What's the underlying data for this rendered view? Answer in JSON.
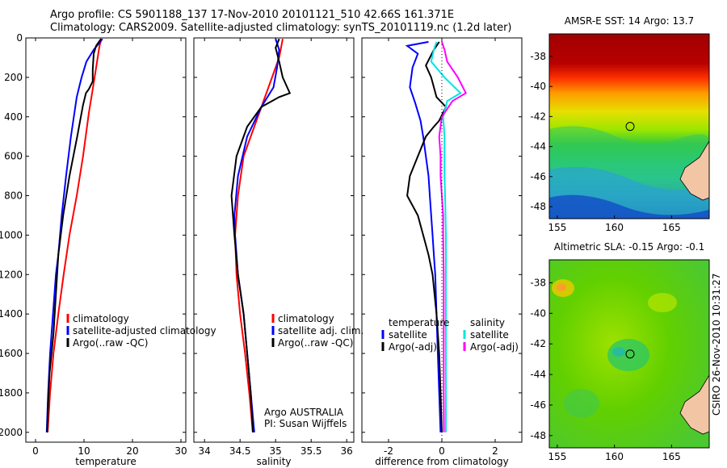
{
  "header": {
    "title_line1": "Argo profile: CS 5901188_137 17-Nov-2010 20101121_510 42.66S 161.371E",
    "title_line2": "Climatology: CARS2009. Satellite-adjusted climatology: synTS_20101119.nc (1.2d later)"
  },
  "side_stamp": "CSIRO 26-Nov-2010 10:31:27",
  "colors": {
    "climatology": "#ff0000",
    "satellite": "#0000ff",
    "argo": "#000000",
    "sat_salinity": "#00e5e5",
    "argo_salinity": "#ff00ff"
  },
  "chart_data": [
    {
      "type": "line",
      "id": "temperature",
      "xlabel": "temperature",
      "ylabel": "",
      "xlim": [
        -2,
        31
      ],
      "ylim": [
        2050,
        0
      ],
      "xticks": [
        0,
        10,
        20,
        30
      ],
      "yticks": [
        0,
        200,
        400,
        600,
        800,
        1000,
        1200,
        1400,
        1600,
        1800,
        2000
      ],
      "legend": [
        "climatology",
        "satellite-adjusted climatology",
        "Argo(..raw -QC)"
      ],
      "series": [
        {
          "name": "climatology",
          "color": "#ff0000",
          "points": [
            [
              13.6,
              5
            ],
            [
              13.2,
              40
            ],
            [
              12.5,
              150
            ],
            [
              11.8,
              260
            ],
            [
              11,
              380
            ],
            [
              9.8,
              600
            ],
            [
              8.5,
              800
            ],
            [
              7,
              1000
            ],
            [
              5.8,
              1200
            ],
            [
              4.7,
              1400
            ],
            [
              3.7,
              1600
            ],
            [
              3,
              1800
            ],
            [
              2.5,
              2000
            ]
          ]
        },
        {
          "name": "satellite-adjusted climatology",
          "color": "#0000ff",
          "points": [
            [
              13.8,
              5
            ],
            [
              13,
              30
            ],
            [
              12,
              60
            ],
            [
              10.5,
              120
            ],
            [
              9.5,
              200
            ],
            [
              8.5,
              300
            ],
            [
              7.3,
              500
            ],
            [
              6.3,
              700
            ],
            [
              5.4,
              900
            ],
            [
              4.7,
              1100
            ],
            [
              4.2,
              1200
            ],
            [
              3.6,
              1400
            ],
            [
              3,
              1600
            ],
            [
              2.6,
              1800
            ],
            [
              2.3,
              2000
            ]
          ]
        },
        {
          "name": "Argo(..raw -QC)",
          "color": "#000000",
          "points": [
            [
              13.5,
              5
            ],
            [
              12.5,
              40
            ],
            [
              12,
              80
            ],
            [
              11.8,
              160
            ],
            [
              11.8,
              220
            ],
            [
              11,
              260
            ],
            [
              10.4,
              280
            ],
            [
              9.8,
              340
            ],
            [
              8.6,
              500
            ],
            [
              7,
              700
            ],
            [
              5.7,
              900
            ],
            [
              4.7,
              1100
            ],
            [
              4.2,
              1300
            ],
            [
              3.7,
              1500
            ],
            [
              2.9,
              1700
            ],
            [
              2.6,
              1850
            ],
            [
              2.4,
              2000
            ]
          ]
        }
      ]
    },
    {
      "type": "line",
      "id": "salinity",
      "xlabel": "salinity",
      "ylabel": "",
      "xlim": [
        33.85,
        36.1
      ],
      "ylim": [
        2050,
        0
      ],
      "xticks": [
        34,
        34.5,
        35,
        35.5,
        36
      ],
      "legend": [
        "climatology",
        "satellite adj. clim.",
        "Argo(..raw -QC)"
      ],
      "annotation": [
        "Argo AUSTRALIA",
        "PI: Susan Wijffels"
      ],
      "series": [
        {
          "name": "climatology",
          "color": "#ff0000",
          "points": [
            [
              35.1,
              5
            ],
            [
              35.05,
              100
            ],
            [
              34.95,
              200
            ],
            [
              34.75,
              400
            ],
            [
              34.55,
              600
            ],
            [
              34.47,
              800
            ],
            [
              34.43,
              1000
            ],
            [
              34.45,
              1200
            ],
            [
              34.5,
              1400
            ],
            [
              34.57,
              1600
            ],
            [
              34.63,
              1800
            ],
            [
              34.68,
              2000
            ]
          ]
        },
        {
          "name": "satellite adj. clim.",
          "color": "#0000ff",
          "points": [
            [
              35,
              5
            ],
            [
              35.05,
              60
            ],
            [
              35.02,
              150
            ],
            [
              34.97,
              250
            ],
            [
              34.8,
              350
            ],
            [
              34.6,
              500
            ],
            [
              34.47,
              700
            ],
            [
              34.42,
              900
            ],
            [
              34.43,
              1000
            ],
            [
              34.47,
              1200
            ],
            [
              34.55,
              1400
            ],
            [
              34.6,
              1600
            ],
            [
              34.65,
              1800
            ],
            [
              34.7,
              2000
            ]
          ]
        },
        {
          "name": "Argo(..raw -QC)",
          "color": "#000000",
          "points": [
            [
              35.05,
              5
            ],
            [
              35,
              50
            ],
            [
              35.05,
              120
            ],
            [
              35.1,
              200
            ],
            [
              35.2,
              280
            ],
            [
              35.05,
              300
            ],
            [
              34.8,
              350
            ],
            [
              34.6,
              450
            ],
            [
              34.45,
              600
            ],
            [
              34.38,
              800
            ],
            [
              34.42,
              1000
            ],
            [
              34.47,
              1200
            ],
            [
              34.55,
              1400
            ],
            [
              34.6,
              1600
            ],
            [
              34.65,
              1800
            ],
            [
              34.68,
              2000
            ]
          ]
        }
      ]
    },
    {
      "type": "line",
      "id": "difference",
      "xlabel": "difference from climatology",
      "ylabel": "",
      "xlim": [
        -3,
        3
      ],
      "ylim": [
        2050,
        0
      ],
      "xticks": [
        -2,
        0,
        2
      ],
      "legend_temperature": [
        "temperature",
        "satellite",
        "Argo(-adj)"
      ],
      "legend_salinity": [
        "salinity",
        "satellite",
        "Argo(-adj)"
      ],
      "series": [
        {
          "name": "satellite",
          "group": "temperature",
          "color": "#0000ff",
          "points": [
            [
              -0.5,
              20
            ],
            [
              -1.3,
              40
            ],
            [
              -0.9,
              80
            ],
            [
              -1.1,
              150
            ],
            [
              -1.2,
              250
            ],
            [
              -1,
              330
            ],
            [
              -0.8,
              420
            ],
            [
              -0.7,
              500
            ],
            [
              -0.6,
              600
            ],
            [
              -0.5,
              700
            ],
            [
              -0.45,
              800
            ],
            [
              -0.4,
              900
            ],
            [
              -0.35,
              1000
            ],
            [
              -0.3,
              1100
            ],
            [
              -0.25,
              1200
            ],
            [
              -0.2,
              1400
            ],
            [
              -0.15,
              1600
            ],
            [
              -0.1,
              1800
            ],
            [
              -0.05,
              2000
            ]
          ]
        },
        {
          "name": "Argo(-adj)",
          "group": "temperature",
          "color": "#000000",
          "points": [
            [
              -0.1,
              20
            ],
            [
              -0.3,
              60
            ],
            [
              -0.6,
              140
            ],
            [
              -0.4,
              200
            ],
            [
              -0.3,
              250
            ],
            [
              -0.2,
              300
            ],
            [
              0.15,
              350
            ],
            [
              -0.1,
              420
            ],
            [
              -0.3,
              450
            ],
            [
              -0.6,
              500
            ],
            [
              -0.9,
              600
            ],
            [
              -1.2,
              700
            ],
            [
              -1.3,
              800
            ],
            [
              -0.9,
              900
            ],
            [
              -0.7,
              1000
            ],
            [
              -0.5,
              1100
            ],
            [
              -0.35,
              1200
            ],
            [
              -0.2,
              1400
            ],
            [
              -0.1,
              1600
            ],
            [
              -0.05,
              1800
            ],
            [
              0,
              2000
            ]
          ]
        },
        {
          "name": "satellite",
          "group": "salinity",
          "color": "#00e5e5",
          "points": [
            [
              -0.2,
              20
            ],
            [
              -0.3,
              60
            ],
            [
              -0.4,
              120
            ],
            [
              0.1,
              200
            ],
            [
              0.7,
              280
            ],
            [
              0.2,
              320
            ],
            [
              0.05,
              400
            ],
            [
              0.1,
              500
            ],
            [
              0.1,
              600
            ],
            [
              0.1,
              700
            ],
            [
              0.12,
              800
            ],
            [
              0.15,
              1000
            ],
            [
              0.15,
              1200
            ],
            [
              0.15,
              1400
            ],
            [
              0.15,
              1600
            ],
            [
              0.15,
              1800
            ],
            [
              0.15,
              2000
            ]
          ]
        },
        {
          "name": "Argo(-adj)",
          "group": "salinity",
          "color": "#ff00ff",
          "points": [
            [
              0,
              20
            ],
            [
              0.1,
              60
            ],
            [
              0.2,
              120
            ],
            [
              0.6,
              200
            ],
            [
              0.9,
              280
            ],
            [
              0.4,
              320
            ],
            [
              0,
              400
            ],
            [
              -0.1,
              500
            ],
            [
              -0.05,
              600
            ],
            [
              -0.05,
              700
            ],
            [
              0,
              800
            ],
            [
              0.05,
              900
            ],
            [
              0.05,
              1000
            ],
            [
              0.07,
              1200
            ],
            [
              0.07,
              1400
            ],
            [
              0.07,
              1600
            ],
            [
              0.07,
              1800
            ],
            [
              0.08,
              2000
            ]
          ]
        },
        {
          "name": "",
          "color": "#000000",
          "dotted": true,
          "points": [
            [
              0,
              0
            ],
            [
              0,
              2050
            ]
          ]
        }
      ]
    },
    {
      "type": "heatmap",
      "id": "sst-map",
      "title": "AMSR-E SST: 14 Argo: 13.7",
      "xlim": [
        154.3,
        168.3
      ],
      "ylim": [
        -48.8,
        -36.5
      ],
      "xticks": [
        155,
        160,
        165
      ],
      "yticks": [
        -38,
        -40,
        -42,
        -44,
        -46,
        -48
      ],
      "marker": {
        "lon": 161.37,
        "lat": -42.66
      }
    },
    {
      "type": "heatmap",
      "id": "sla-map",
      "title": "Altimetric SLA: -0.15 Argo: -0.1",
      "xlim": [
        154.3,
        168.3
      ],
      "ylim": [
        -48.8,
        -36.5
      ],
      "xticks": [
        155,
        160,
        165
      ],
      "yticks": [
        -38,
        -40,
        -42,
        -44,
        -46,
        -48
      ],
      "marker": {
        "lon": 161.37,
        "lat": -42.66
      }
    }
  ]
}
